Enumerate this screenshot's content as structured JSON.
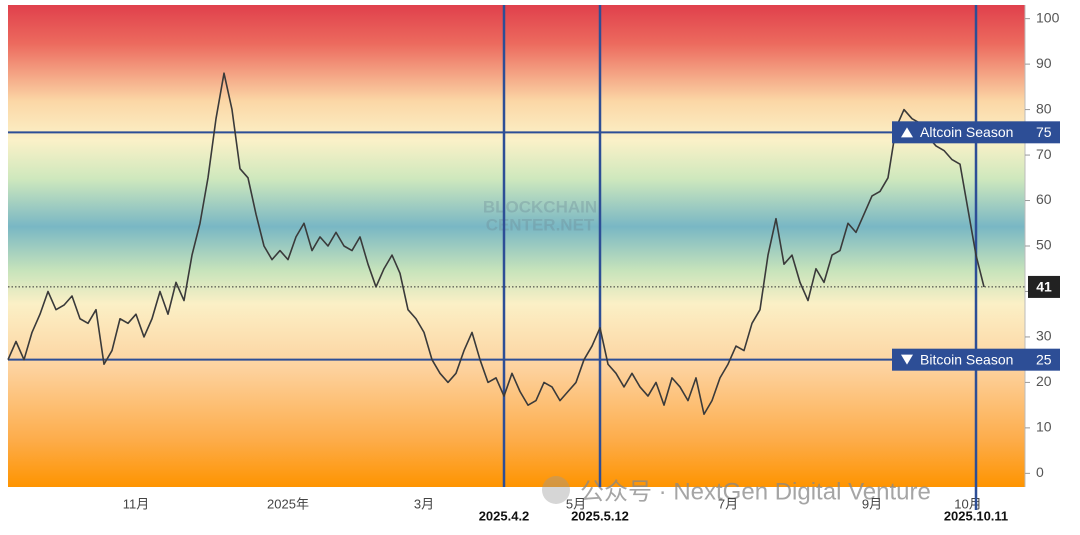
{
  "chart_data": {
    "type": "line",
    "watermark": [
      "BLOCKCHAIN",
      "CENTER.NET"
    ],
    "footer_watermark": "公众号 · NextGen Digital Venture",
    "categories": [
      null,
      null,
      null,
      null,
      null,
      null,
      null,
      null,
      null,
      null,
      null,
      null,
      null,
      null,
      null,
      null,
      "11月",
      null,
      null,
      null,
      null,
      null,
      null,
      null,
      null,
      null,
      null,
      null,
      null,
      null,
      null,
      null,
      null,
      null,
      null,
      "2025年",
      null,
      null,
      null,
      null,
      null,
      null,
      null,
      null,
      null,
      null,
      null,
      null,
      null,
      null,
      null,
      null,
      "3月",
      null,
      null,
      null,
      null,
      null,
      null,
      null,
      null,
      null,
      null,
      null,
      null,
      null,
      null,
      null,
      null,
      null,
      null,
      "5月",
      null,
      null,
      null,
      null,
      null,
      null,
      null,
      null,
      null,
      null,
      null,
      null,
      null,
      null,
      null,
      null,
      null,
      null,
      "7月",
      null,
      null,
      null,
      null,
      null,
      null,
      null,
      null,
      null,
      null,
      null,
      null,
      null,
      null,
      null,
      null,
      null,
      "9月",
      null,
      null,
      null,
      null,
      null,
      null,
      null,
      null,
      null,
      null,
      null,
      "10月",
      null,
      null
    ],
    "series": [
      {
        "color": "#3a3a3a",
        "values": [
          25,
          29,
          25,
          31,
          35,
          40,
          36,
          37,
          39,
          34,
          33,
          36,
          24,
          27,
          34,
          33,
          35,
          30,
          34,
          40,
          35,
          42,
          38,
          48,
          55,
          65,
          78,
          88,
          80,
          67,
          65,
          57,
          50,
          47,
          49,
          47,
          52,
          55,
          49,
          52,
          50,
          53,
          50,
          49,
          52,
          46,
          41,
          45,
          48,
          44,
          36,
          34,
          31,
          25,
          22,
          20,
          22,
          27,
          31,
          25,
          20,
          21,
          17,
          22,
          18,
          15,
          16,
          20,
          19,
          16,
          18,
          20,
          25,
          28,
          32,
          24,
          22,
          19,
          22,
          19,
          17,
          20,
          15,
          21,
          19,
          16,
          21,
          13,
          16,
          21,
          24,
          28,
          27,
          33,
          36,
          48,
          56,
          46,
          48,
          42,
          38,
          45,
          42,
          48,
          49,
          55,
          53,
          57,
          61,
          62,
          65,
          76,
          80,
          78,
          77,
          74,
          72,
          71,
          69,
          68,
          58,
          48,
          41
        ]
      }
    ],
    "ylim": [
      -3,
      103
    ],
    "yticks": [
      0,
      10,
      20,
      30,
      40,
      50,
      60,
      70,
      80,
      90,
      100
    ],
    "ref_color": "#2d4e96",
    "ref_lines": [
      {
        "value": 75,
        "label": "Altcoin Season"
      },
      {
        "value": 25,
        "label": "Bitcoin Season"
      }
    ],
    "vlines": [
      {
        "x": 62,
        "label": "2025.4.2"
      },
      {
        "x": 74,
        "label": "2025.5.12"
      },
      {
        "x": 121,
        "label": "2025.10.11"
      }
    ]
  }
}
